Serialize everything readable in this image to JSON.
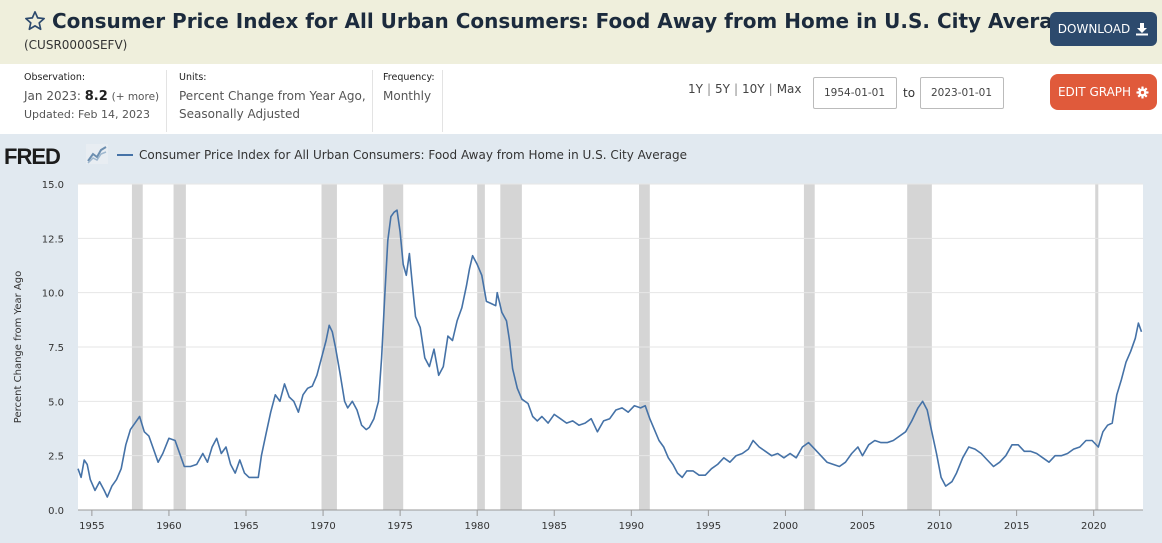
{
  "header": {
    "title": "Consumer Price Index for All Urban Consumers: Food Away from Home in U.S. City Average",
    "series_id": "(CUSR0000SEFV)",
    "download_label": "DOWNLOAD"
  },
  "meta": {
    "observation_label": "Observation:",
    "observation_date": "Jan 2023:",
    "observation_value": "8.2",
    "observation_more": "(+ more)",
    "updated": "Updated: Feb 14, 2023",
    "units_label": "Units:",
    "units_line1": "Percent Change from Year Ago,",
    "units_line2": "Seasonally Adjusted",
    "frequency_label": "Frequency:",
    "frequency_value": "Monthly"
  },
  "range": {
    "links": [
      "1Y",
      "5Y",
      "10Y",
      "Max"
    ],
    "start": "1954-01-01",
    "to_label": "to",
    "end": "2023-01-01",
    "edit_label": "EDIT GRAPH"
  },
  "graph": {
    "logo_text": "FRED",
    "legend_label": "Consumer Price Index for All Urban Consumers: Food Away from Home in U.S. City Average"
  },
  "chart_data": {
    "type": "line",
    "ylabel": "Percent Change from Year Ago",
    "ylim": [
      0,
      15
    ],
    "yticks": [
      0,
      2.5,
      5,
      7.5,
      10,
      12.5,
      15
    ],
    "ytick_labels": [
      "0.0",
      "2.5",
      "5.0",
      "7.5",
      "10.0",
      "12.5",
      "15.0"
    ],
    "xlim": [
      1954.1,
      2023.2
    ],
    "xticks": [
      1955,
      1960,
      1965,
      1970,
      1975,
      1980,
      1985,
      1990,
      1995,
      2000,
      2005,
      2010,
      2015,
      2020
    ],
    "grid": true,
    "colors": {
      "line": "#4572a7",
      "recession": "#d5d5d5",
      "plot_bg": "#ffffff",
      "grid": "#e6e6e6"
    },
    "recessions": [
      [
        1957.6,
        1958.3
      ],
      [
        1960.3,
        1961.1
      ],
      [
        1969.9,
        1970.9
      ],
      [
        1973.9,
        1975.2
      ],
      [
        1980.0,
        1980.5
      ],
      [
        1981.5,
        1982.9
      ],
      [
        1990.5,
        1991.2
      ],
      [
        2001.2,
        2001.9
      ],
      [
        2007.9,
        2009.5
      ],
      [
        2020.1,
        2020.3
      ]
    ],
    "series": [
      {
        "values": [
          [
            1954.1,
            1.9
          ],
          [
            1954.3,
            1.5
          ],
          [
            1954.5,
            2.3
          ],
          [
            1954.7,
            2.1
          ],
          [
            1954.9,
            1.4
          ],
          [
            1955.2,
            0.9
          ],
          [
            1955.5,
            1.3
          ],
          [
            1955.8,
            0.9
          ],
          [
            1956.0,
            0.6
          ],
          [
            1956.3,
            1.1
          ],
          [
            1956.6,
            1.4
          ],
          [
            1956.9,
            1.9
          ],
          [
            1957.2,
            3.0
          ],
          [
            1957.5,
            3.7
          ],
          [
            1957.8,
            4.0
          ],
          [
            1958.1,
            4.3
          ],
          [
            1958.4,
            3.6
          ],
          [
            1958.7,
            3.4
          ],
          [
            1959.0,
            2.8
          ],
          [
            1959.3,
            2.2
          ],
          [
            1959.6,
            2.6
          ],
          [
            1960.0,
            3.3
          ],
          [
            1960.4,
            3.2
          ],
          [
            1960.7,
            2.6
          ],
          [
            1961.0,
            2.0
          ],
          [
            1961.4,
            2.0
          ],
          [
            1961.8,
            2.1
          ],
          [
            1962.2,
            2.6
          ],
          [
            1962.5,
            2.2
          ],
          [
            1962.8,
            2.9
          ],
          [
            1963.1,
            3.3
          ],
          [
            1963.4,
            2.6
          ],
          [
            1963.7,
            2.9
          ],
          [
            1964.0,
            2.1
          ],
          [
            1964.3,
            1.7
          ],
          [
            1964.6,
            2.3
          ],
          [
            1964.9,
            1.7
          ],
          [
            1965.2,
            1.5
          ],
          [
            1965.5,
            1.5
          ],
          [
            1965.8,
            1.5
          ],
          [
            1966.0,
            2.5
          ],
          [
            1966.3,
            3.5
          ],
          [
            1966.6,
            4.5
          ],
          [
            1966.9,
            5.3
          ],
          [
            1967.2,
            5.0
          ],
          [
            1967.5,
            5.8
          ],
          [
            1967.8,
            5.2
          ],
          [
            1968.1,
            5.0
          ],
          [
            1968.4,
            4.5
          ],
          [
            1968.7,
            5.3
          ],
          [
            1969.0,
            5.6
          ],
          [
            1969.3,
            5.7
          ],
          [
            1969.6,
            6.2
          ],
          [
            1969.9,
            7.0
          ],
          [
            1970.2,
            7.8
          ],
          [
            1970.4,
            8.5
          ],
          [
            1970.6,
            8.2
          ],
          [
            1970.8,
            7.5
          ],
          [
            1971.1,
            6.3
          ],
          [
            1971.4,
            5.0
          ],
          [
            1971.6,
            4.7
          ],
          [
            1971.9,
            5.0
          ],
          [
            1972.2,
            4.6
          ],
          [
            1972.5,
            3.9
          ],
          [
            1972.8,
            3.7
          ],
          [
            1973.0,
            3.8
          ],
          [
            1973.3,
            4.2
          ],
          [
            1973.6,
            5.0
          ],
          [
            1973.8,
            7.0
          ],
          [
            1974.0,
            9.8
          ],
          [
            1974.2,
            12.4
          ],
          [
            1974.4,
            13.5
          ],
          [
            1974.6,
            13.7
          ],
          [
            1974.8,
            13.8
          ],
          [
            1975.0,
            12.8
          ],
          [
            1975.2,
            11.3
          ],
          [
            1975.4,
            10.8
          ],
          [
            1975.6,
            11.8
          ],
          [
            1975.8,
            10.3
          ],
          [
            1976.0,
            8.9
          ],
          [
            1976.3,
            8.4
          ],
          [
            1976.6,
            7.0
          ],
          [
            1976.9,
            6.6
          ],
          [
            1977.2,
            7.4
          ],
          [
            1977.5,
            6.2
          ],
          [
            1977.8,
            6.6
          ],
          [
            1978.1,
            8.0
          ],
          [
            1978.4,
            7.8
          ],
          [
            1978.7,
            8.7
          ],
          [
            1979.0,
            9.3
          ],
          [
            1979.3,
            10.3
          ],
          [
            1979.5,
            11.1
          ],
          [
            1979.7,
            11.7
          ],
          [
            1980.0,
            11.3
          ],
          [
            1980.3,
            10.8
          ],
          [
            1980.6,
            9.6
          ],
          [
            1980.9,
            9.5
          ],
          [
            1981.2,
            9.4
          ],
          [
            1981.3,
            10.0
          ],
          [
            1981.6,
            9.1
          ],
          [
            1981.9,
            8.7
          ],
          [
            1982.1,
            7.8
          ],
          [
            1982.3,
            6.5
          ],
          [
            1982.6,
            5.6
          ],
          [
            1982.9,
            5.1
          ],
          [
            1983.3,
            4.9
          ],
          [
            1983.6,
            4.3
          ],
          [
            1983.9,
            4.1
          ],
          [
            1984.2,
            4.3
          ],
          [
            1984.6,
            4.0
          ],
          [
            1985.0,
            4.4
          ],
          [
            1985.4,
            4.2
          ],
          [
            1985.8,
            4.0
          ],
          [
            1986.2,
            4.1
          ],
          [
            1986.6,
            3.9
          ],
          [
            1987.0,
            4.0
          ],
          [
            1987.4,
            4.2
          ],
          [
            1987.8,
            3.6
          ],
          [
            1988.2,
            4.1
          ],
          [
            1988.6,
            4.2
          ],
          [
            1989.0,
            4.6
          ],
          [
            1989.4,
            4.7
          ],
          [
            1989.8,
            4.5
          ],
          [
            1990.2,
            4.8
          ],
          [
            1990.6,
            4.7
          ],
          [
            1990.9,
            4.8
          ],
          [
            1991.2,
            4.2
          ],
          [
            1991.5,
            3.7
          ],
          [
            1991.8,
            3.2
          ],
          [
            1992.1,
            2.9
          ],
          [
            1992.4,
            2.4
          ],
          [
            1992.7,
            2.1
          ],
          [
            1993.0,
            1.7
          ],
          [
            1993.3,
            1.5
          ],
          [
            1993.6,
            1.8
          ],
          [
            1994.0,
            1.8
          ],
          [
            1994.4,
            1.6
          ],
          [
            1994.8,
            1.6
          ],
          [
            1995.2,
            1.9
          ],
          [
            1995.6,
            2.1
          ],
          [
            1996.0,
            2.4
          ],
          [
            1996.4,
            2.2
          ],
          [
            1996.8,
            2.5
          ],
          [
            1997.2,
            2.6
          ],
          [
            1997.6,
            2.8
          ],
          [
            1997.9,
            3.2
          ],
          [
            1998.3,
            2.9
          ],
          [
            1998.7,
            2.7
          ],
          [
            1999.1,
            2.5
          ],
          [
            1999.5,
            2.6
          ],
          [
            1999.9,
            2.4
          ],
          [
            2000.3,
            2.6
          ],
          [
            2000.7,
            2.4
          ],
          [
            2001.1,
            2.9
          ],
          [
            2001.5,
            3.1
          ],
          [
            2001.9,
            2.8
          ],
          [
            2002.3,
            2.5
          ],
          [
            2002.7,
            2.2
          ],
          [
            2003.1,
            2.1
          ],
          [
            2003.5,
            2.0
          ],
          [
            2003.9,
            2.2
          ],
          [
            2004.3,
            2.6
          ],
          [
            2004.7,
            2.9
          ],
          [
            2005.0,
            2.5
          ],
          [
            2005.4,
            3.0
          ],
          [
            2005.8,
            3.2
          ],
          [
            2006.2,
            3.1
          ],
          [
            2006.6,
            3.1
          ],
          [
            2007.0,
            3.2
          ],
          [
            2007.4,
            3.4
          ],
          [
            2007.8,
            3.6
          ],
          [
            2008.2,
            4.1
          ],
          [
            2008.6,
            4.7
          ],
          [
            2008.9,
            5.0
          ],
          [
            2009.2,
            4.6
          ],
          [
            2009.5,
            3.6
          ],
          [
            2009.8,
            2.6
          ],
          [
            2010.1,
            1.5
          ],
          [
            2010.4,
            1.1
          ],
          [
            2010.8,
            1.3
          ],
          [
            2011.1,
            1.7
          ],
          [
            2011.5,
            2.4
          ],
          [
            2011.9,
            2.9
          ],
          [
            2012.3,
            2.8
          ],
          [
            2012.7,
            2.6
          ],
          [
            2013.1,
            2.3
          ],
          [
            2013.5,
            2.0
          ],
          [
            2013.9,
            2.2
          ],
          [
            2014.3,
            2.5
          ],
          [
            2014.7,
            3.0
          ],
          [
            2015.1,
            3.0
          ],
          [
            2015.5,
            2.7
          ],
          [
            2015.9,
            2.7
          ],
          [
            2016.3,
            2.6
          ],
          [
            2016.7,
            2.4
          ],
          [
            2017.1,
            2.2
          ],
          [
            2017.5,
            2.5
          ],
          [
            2017.9,
            2.5
          ],
          [
            2018.3,
            2.6
          ],
          [
            2018.7,
            2.8
          ],
          [
            2019.1,
            2.9
          ],
          [
            2019.5,
            3.2
          ],
          [
            2019.9,
            3.2
          ],
          [
            2020.3,
            2.9
          ],
          [
            2020.6,
            3.6
          ],
          [
            2020.9,
            3.9
          ],
          [
            2021.2,
            4.0
          ],
          [
            2021.5,
            5.3
          ],
          [
            2021.8,
            6.0
          ],
          [
            2022.1,
            6.8
          ],
          [
            2022.4,
            7.3
          ],
          [
            2022.7,
            7.9
          ],
          [
            2022.9,
            8.6
          ],
          [
            2023.1,
            8.2
          ]
        ]
      }
    ]
  }
}
